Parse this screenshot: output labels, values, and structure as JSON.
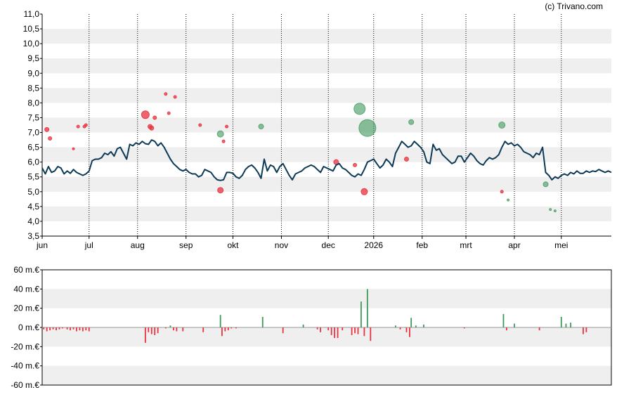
{
  "credit": "(c) Trivano.com",
  "colors": {
    "line": "#0d3a56",
    "buy": "#e8323f",
    "sell": "#3e9a5b",
    "band": "#efefef",
    "axis": "#000000"
  },
  "chart_data": [
    {
      "type": "line",
      "title": "",
      "ylim": [
        3.5,
        11.0
      ],
      "y_ticks": [
        "11,0",
        "10,5",
        "10,0",
        "9,5",
        "9,0",
        "8,5",
        "8,0",
        "7,5",
        "7,0",
        "6,5",
        "6,0",
        "5,5",
        "5,0",
        "4,5",
        "4,0",
        "3,5"
      ],
      "x_ticks": [
        "jun",
        "jul",
        "aug",
        "sep",
        "okt",
        "nov",
        "dec",
        "2026",
        "feb",
        "mrt",
        "apr",
        "mei"
      ],
      "x_tick_days": [
        0,
        30,
        61,
        92,
        122,
        153,
        183,
        212,
        243,
        271,
        302,
        332
      ],
      "x_range_days": [
        0,
        364
      ],
      "grid": "bands",
      "series": [
        {
          "values_by_day": [
            [
              0,
              5.8
            ],
            [
              2,
              5.6
            ],
            [
              4,
              5.85
            ],
            [
              6,
              5.65
            ],
            [
              8,
              5.7
            ],
            [
              10,
              5.85
            ],
            [
              12,
              5.8
            ],
            [
              14,
              5.6
            ],
            [
              16,
              5.7
            ],
            [
              18,
              5.62
            ],
            [
              20,
              5.75
            ],
            [
              22,
              5.65
            ],
            [
              24,
              5.6
            ],
            [
              26,
              5.55
            ],
            [
              28,
              5.6
            ],
            [
              30,
              5.7
            ],
            [
              32,
              6.05
            ],
            [
              34,
              6.1
            ],
            [
              36,
              6.1
            ],
            [
              38,
              6.15
            ],
            [
              40,
              6.3
            ],
            [
              42,
              6.25
            ],
            [
              44,
              6.35
            ],
            [
              46,
              6.2
            ],
            [
              48,
              6.45
            ],
            [
              50,
              6.5
            ],
            [
              52,
              6.3
            ],
            [
              54,
              6.1
            ],
            [
              56,
              6.6
            ],
            [
              58,
              6.55
            ],
            [
              60,
              6.65
            ],
            [
              62,
              6.6
            ],
            [
              64,
              6.7
            ],
            [
              66,
              6.62
            ],
            [
              68,
              6.6
            ],
            [
              70,
              6.75
            ],
            [
              72,
              6.7
            ],
            [
              74,
              6.55
            ],
            [
              76,
              6.65
            ],
            [
              78,
              6.5
            ],
            [
              80,
              6.3
            ],
            [
              82,
              6.1
            ],
            [
              84,
              5.95
            ],
            [
              86,
              5.85
            ],
            [
              88,
              5.75
            ],
            [
              90,
              5.7
            ],
            [
              92,
              5.75
            ],
            [
              94,
              5.65
            ],
            [
              96,
              5.6
            ],
            [
              98,
              5.6
            ],
            [
              100,
              5.5
            ],
            [
              102,
              5.55
            ],
            [
              104,
              5.75
            ],
            [
              106,
              5.7
            ],
            [
              108,
              5.65
            ],
            [
              110,
              5.5
            ],
            [
              112,
              5.4
            ],
            [
              114,
              5.38
            ],
            [
              116,
              5.4
            ],
            [
              118,
              5.65
            ],
            [
              120,
              5.65
            ],
            [
              122,
              5.62
            ],
            [
              124,
              5.5
            ],
            [
              126,
              5.45
            ],
            [
              128,
              5.55
            ],
            [
              130,
              5.75
            ],
            [
              132,
              5.85
            ],
            [
              134,
              5.9
            ],
            [
              136,
              5.8
            ],
            [
              138,
              5.65
            ],
            [
              140,
              5.45
            ],
            [
              142,
              6.1
            ],
            [
              144,
              5.7
            ],
            [
              146,
              5.9
            ],
            [
              148,
              5.85
            ],
            [
              150,
              5.65
            ],
            [
              152,
              5.85
            ],
            [
              154,
              5.95
            ],
            [
              156,
              5.75
            ],
            [
              158,
              5.55
            ],
            [
              160,
              5.4
            ],
            [
              162,
              5.6
            ],
            [
              164,
              5.65
            ],
            [
              166,
              5.7
            ],
            [
              168,
              5.8
            ],
            [
              170,
              5.85
            ],
            [
              172,
              5.9
            ],
            [
              174,
              5.85
            ],
            [
              176,
              5.75
            ],
            [
              178,
              5.65
            ],
            [
              180,
              5.85
            ],
            [
              182,
              5.8
            ],
            [
              184,
              5.75
            ],
            [
              186,
              5.7
            ],
            [
              188,
              5.9
            ],
            [
              190,
              5.95
            ],
            [
              192,
              5.8
            ],
            [
              194,
              5.75
            ],
            [
              196,
              5.65
            ],
            [
              198,
              5.55
            ],
            [
              200,
              5.5
            ],
            [
              202,
              5.6
            ],
            [
              204,
              5.55
            ],
            [
              206,
              5.75
            ],
            [
              208,
              6.0
            ],
            [
              210,
              6.05
            ],
            [
              212,
              6.1
            ],
            [
              214,
              5.95
            ],
            [
              216,
              5.8
            ],
            [
              218,
              5.9
            ],
            [
              220,
              6.1
            ],
            [
              222,
              6.0
            ],
            [
              224,
              5.85
            ],
            [
              226,
              6.3
            ],
            [
              228,
              6.5
            ],
            [
              230,
              6.7
            ],
            [
              232,
              6.6
            ],
            [
              234,
              6.5
            ],
            [
              236,
              6.55
            ],
            [
              238,
              6.7
            ],
            [
              240,
              6.6
            ],
            [
              242,
              6.5
            ],
            [
              244,
              6.35
            ],
            [
              246,
              6.0
            ],
            [
              248,
              5.95
            ],
            [
              250,
              6.6
            ],
            [
              252,
              6.4
            ],
            [
              254,
              6.45
            ],
            [
              256,
              6.25
            ],
            [
              258,
              6.15
            ],
            [
              260,
              6.05
            ],
            [
              262,
              5.95
            ],
            [
              264,
              6.0
            ],
            [
              266,
              6.2
            ],
            [
              268,
              6.2
            ],
            [
              270,
              6.0
            ],
            [
              272,
              6.15
            ],
            [
              274,
              6.3
            ],
            [
              276,
              6.2
            ],
            [
              278,
              6.05
            ],
            [
              280,
              5.95
            ],
            [
              282,
              5.9
            ],
            [
              284,
              6.05
            ],
            [
              286,
              6.15
            ],
            [
              288,
              6.1
            ],
            [
              290,
              6.15
            ],
            [
              292,
              6.25
            ],
            [
              294,
              6.5
            ],
            [
              296,
              6.7
            ],
            [
              298,
              6.6
            ],
            [
              300,
              6.65
            ],
            [
              302,
              6.55
            ],
            [
              304,
              6.6
            ],
            [
              306,
              6.5
            ],
            [
              308,
              6.35
            ],
            [
              310,
              6.3
            ],
            [
              312,
              6.25
            ],
            [
              314,
              6.15
            ],
            [
              316,
              6.3
            ],
            [
              318,
              6.25
            ],
            [
              320,
              6.5
            ],
            [
              322,
              5.65
            ],
            [
              324,
              5.55
            ],
            [
              326,
              5.4
            ],
            [
              328,
              5.5
            ],
            [
              330,
              5.45
            ],
            [
              332,
              5.55
            ],
            [
              334,
              5.6
            ],
            [
              336,
              5.55
            ],
            [
              338,
              5.65
            ],
            [
              340,
              5.6
            ],
            [
              342,
              5.7
            ],
            [
              344,
              5.62
            ],
            [
              346,
              5.62
            ],
            [
              348,
              5.7
            ],
            [
              350,
              5.65
            ],
            [
              352,
              5.7
            ],
            [
              354,
              5.68
            ],
            [
              356,
              5.75
            ],
            [
              358,
              5.7
            ],
            [
              360,
              5.65
            ],
            [
              362,
              5.7
            ],
            [
              364,
              5.65
            ]
          ]
        }
      ],
      "markers": {
        "buy": [
          [
            3,
            7.1,
            3
          ],
          [
            5,
            6.8,
            2.5
          ],
          [
            23,
            7.2,
            2
          ],
          [
            27,
            7.2,
            2
          ],
          [
            28,
            7.25,
            2
          ],
          [
            20,
            6.45,
            1.5
          ],
          [
            66,
            7.6,
            5.5
          ],
          [
            69,
            7.2,
            3
          ],
          [
            70,
            7.15,
            3
          ],
          [
            72,
            7.5,
            2.5
          ],
          [
            79,
            8.3,
            2
          ],
          [
            81,
            7.65,
            2
          ],
          [
            85,
            8.2,
            2
          ],
          [
            101,
            7.25,
            2
          ],
          [
            114,
            5.05,
            4
          ],
          [
            116,
            6.7,
            2
          ],
          [
            118,
            7.2,
            2
          ],
          [
            188,
            6.0,
            3.5
          ],
          [
            200,
            5.9,
            2.5
          ],
          [
            206,
            5.0,
            4.5
          ],
          [
            233,
            6.1,
            3
          ],
          [
            294,
            5.0,
            2
          ]
        ],
        "sell": [
          [
            114,
            6.95,
            4.5
          ],
          [
            140,
            7.2,
            3.5
          ],
          [
            203,
            7.8,
            8
          ],
          [
            208,
            7.15,
            12
          ],
          [
            236,
            7.35,
            3.5
          ],
          [
            294,
            7.25,
            4.5
          ],
          [
            298,
            4.72,
            1.5
          ],
          [
            322,
            5.25,
            3.5
          ],
          [
            325,
            4.4,
            1.5
          ],
          [
            328,
            4.35,
            1.5
          ]
        ]
      }
    },
    {
      "type": "bar",
      "title": "",
      "y_unit": "m.€",
      "ylim": [
        -60,
        60
      ],
      "y_ticks": [
        "60 m.€",
        "40 m.€",
        "20 m.€",
        "0 m.€",
        "-20 m.€",
        "-40 m.€",
        "-60 m.€"
      ],
      "grid": "bands",
      "values_by_day": [
        [
          1,
          -2
        ],
        [
          3,
          -4
        ],
        [
          5,
          -3
        ],
        [
          7,
          -2
        ],
        [
          9,
          -3
        ],
        [
          11,
          -2
        ],
        [
          13,
          -1
        ],
        [
          16,
          -2
        ],
        [
          18,
          -3
        ],
        [
          20,
          -2
        ],
        [
          22,
          -4
        ],
        [
          24,
          -3
        ],
        [
          26,
          -4
        ],
        [
          28,
          -3
        ],
        [
          30,
          -4
        ],
        [
          66,
          -16
        ],
        [
          68,
          -5
        ],
        [
          70,
          -7
        ],
        [
          72,
          -8
        ],
        [
          74,
          -6
        ],
        [
          79,
          -1
        ],
        [
          82,
          2
        ],
        [
          84,
          -3
        ],
        [
          86,
          -4
        ],
        [
          90,
          -4
        ],
        [
          103,
          -5
        ],
        [
          114,
          13
        ],
        [
          115,
          -9
        ],
        [
          117,
          -4
        ],
        [
          119,
          -3
        ],
        [
          121,
          -1
        ],
        [
          124,
          -1
        ],
        [
          141,
          11
        ],
        [
          154,
          -6
        ],
        [
          167,
          3
        ],
        [
          176,
          -2
        ],
        [
          178,
          -5
        ],
        [
          183,
          -3
        ],
        [
          185,
          -8
        ],
        [
          187,
          -11
        ],
        [
          189,
          -11
        ],
        [
          192,
          -3
        ],
        [
          198,
          -8
        ],
        [
          200,
          -6
        ],
        [
          202,
          -7
        ],
        [
          204,
          27
        ],
        [
          206,
          -9
        ],
        [
          208,
          40
        ],
        [
          210,
          -14
        ],
        [
          226,
          2
        ],
        [
          229,
          -2
        ],
        [
          233,
          -5
        ],
        [
          235,
          -10
        ],
        [
          236,
          10
        ],
        [
          239,
          2
        ],
        [
          244,
          3
        ],
        [
          270,
          -1
        ],
        [
          295,
          14
        ],
        [
          297,
          -3
        ],
        [
          302,
          4
        ],
        [
          318,
          -3
        ],
        [
          332,
          11
        ],
        [
          335,
          4
        ],
        [
          338,
          5
        ],
        [
          346,
          -7
        ],
        [
          348,
          -5
        ]
      ]
    }
  ]
}
